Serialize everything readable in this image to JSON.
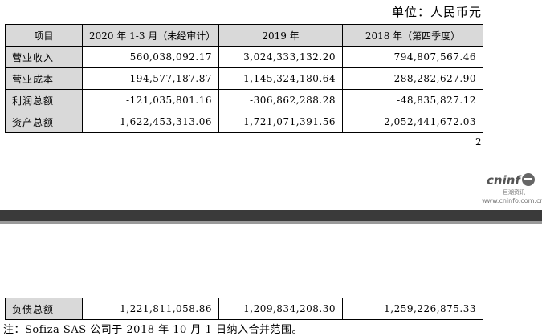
{
  "unit_label": "单位：人民币元",
  "table": {
    "headers": [
      "项目",
      "2020 年 1-3 月（未经审计）",
      "2019 年",
      "2018 年（第四季度）"
    ],
    "rows": [
      {
        "label": "营业收入",
        "values": [
          "560,038,092.17",
          "3,024,333,132.20",
          "794,807,567.46"
        ]
      },
      {
        "label": "营业成本",
        "values": [
          "194,577,187.87",
          "1,145,324,180.64",
          "288,282,627.90"
        ]
      },
      {
        "label": "利润总额",
        "values": [
          "-121,035,801.16",
          "-306,862,288.28",
          "-48,835,827.12"
        ]
      },
      {
        "label": "资产总额",
        "values": [
          "1,622,453,313.06",
          "1,721,071,391.56",
          "2,052,441,672.03"
        ]
      }
    ]
  },
  "page_number": "2",
  "watermark": {
    "brand": "cninf",
    "chinese": "巨潮资讯",
    "url": "www.cninfo.com.cn"
  },
  "table_continued": {
    "rows": [
      {
        "label": "负债总额",
        "values": [
          "1,221,811,058.86",
          "1,209,834,208.30",
          "1,259,226,875.33"
        ]
      }
    ]
  },
  "note": "注：Sofiza SAS 公司于 2018 年 10 月 1 日纳入合并范围。"
}
